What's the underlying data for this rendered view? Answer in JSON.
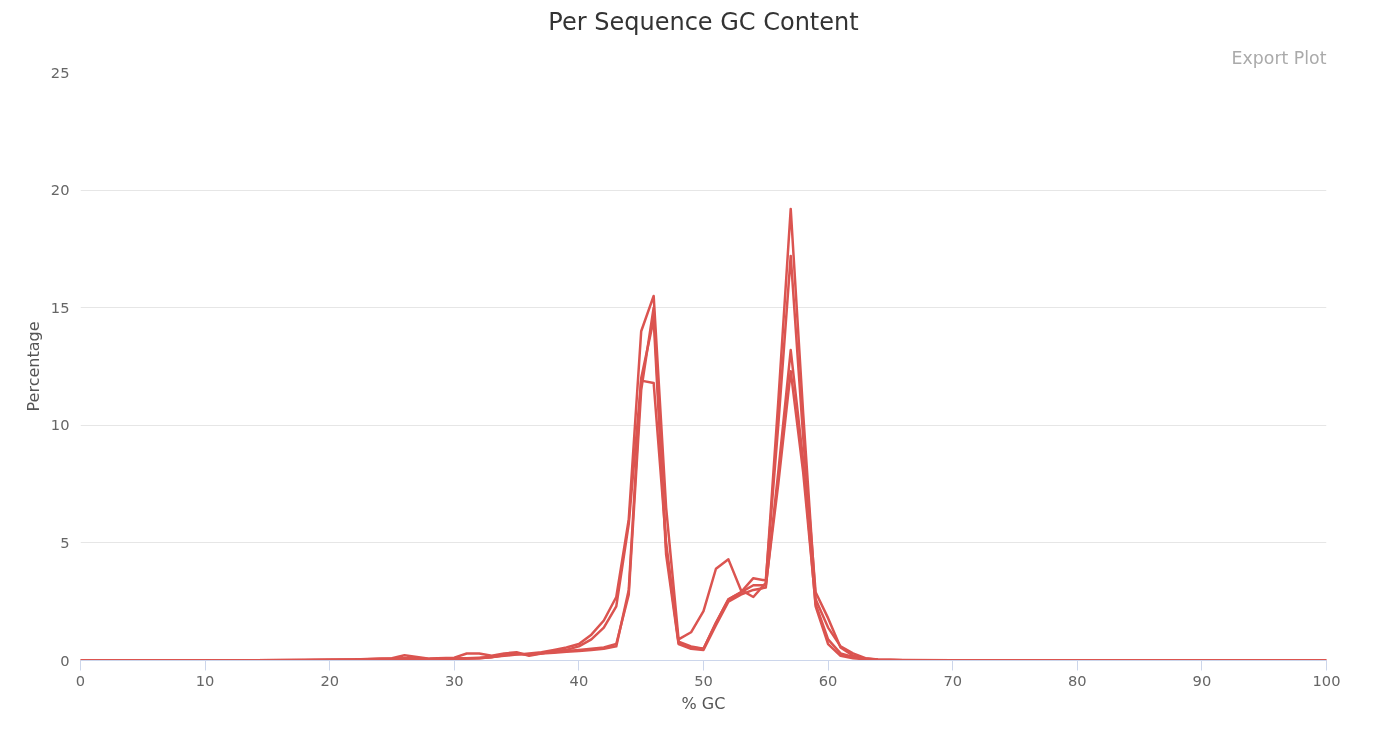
{
  "chart_data": {
    "type": "line",
    "title": "Per Sequence GC Content",
    "xlabel": "% GC",
    "ylabel": "Percentage",
    "annotations": [
      "Export Plot"
    ],
    "x": [
      0,
      10,
      14,
      18,
      20,
      22,
      24,
      25,
      26,
      27,
      28,
      30,
      31,
      32,
      33,
      34,
      35,
      36,
      37,
      38,
      39,
      40,
      41,
      42,
      43,
      44,
      45,
      46,
      47,
      48,
      49,
      50,
      51,
      52,
      53,
      54,
      55,
      56,
      57,
      58,
      59,
      60,
      61,
      62,
      63,
      64,
      66,
      70,
      80,
      90,
      100
    ],
    "series": [
      {
        "color": "#db5450",
        "values": [
          0,
          0,
          0.01,
          0.02,
          0.03,
          0.04,
          0.06,
          0.07,
          0.1,
          0.08,
          0.06,
          0.08,
          0.1,
          0.12,
          0.15,
          0.2,
          0.25,
          0.3,
          0.35,
          0.45,
          0.55,
          0.7,
          1.1,
          1.7,
          2.7,
          6,
          14,
          15.5,
          6.5,
          0.9,
          1.2,
          2.1,
          3.9,
          4.3,
          3,
          2.7,
          3.3,
          11,
          19.2,
          10.5,
          2.6,
          1.4,
          0.6,
          0.3,
          0.1,
          0.04,
          0.02,
          0.01,
          0,
          0,
          0
        ]
      },
      {
        "color": "#db5450",
        "values": [
          0,
          0,
          0.01,
          0.02,
          0.03,
          0.04,
          0.08,
          0.1,
          0.22,
          0.15,
          0.08,
          0.12,
          0.3,
          0.3,
          0.2,
          0.3,
          0.35,
          0.2,
          0.3,
          0.4,
          0.45,
          0.6,
          0.9,
          1.4,
          2.3,
          5.8,
          11.9,
          11.8,
          5,
          0.8,
          0.6,
          0.5,
          1.6,
          2.6,
          2.9,
          3.5,
          3.4,
          10,
          17.2,
          9.5,
          2.9,
          1.8,
          0.55,
          0.2,
          0.08,
          0.03,
          0.01,
          0,
          0,
          0,
          0
        ]
      },
      {
        "color": "#db5450",
        "values": [
          0,
          0,
          0.01,
          0.02,
          0.02,
          0.03,
          0.05,
          0.06,
          0.08,
          0.07,
          0.05,
          0.07,
          0.08,
          0.1,
          0.15,
          0.25,
          0.3,
          0.25,
          0.3,
          0.33,
          0.37,
          0.4,
          0.45,
          0.5,
          0.6,
          3,
          12,
          14.5,
          4.5,
          0.7,
          0.5,
          0.45,
          1.5,
          2.5,
          2.8,
          3,
          3.1,
          8,
          13.2,
          8.5,
          2.3,
          0.7,
          0.2,
          0.1,
          0.05,
          0.02,
          0.01,
          0,
          0,
          0,
          0
        ]
      },
      {
        "color": "#db5450",
        "values": [
          0,
          0,
          0.01,
          0.01,
          0.02,
          0.03,
          0.05,
          0.06,
          0.07,
          0.06,
          0.05,
          0.06,
          0.08,
          0.1,
          0.14,
          0.22,
          0.28,
          0.26,
          0.32,
          0.36,
          0.4,
          0.45,
          0.5,
          0.55,
          0.7,
          2.8,
          11.5,
          15,
          4.8,
          0.75,
          0.55,
          0.5,
          1.6,
          2.6,
          2.9,
          3.2,
          3.2,
          7.5,
          12.3,
          8,
          2.4,
          0.9,
          0.3,
          0.15,
          0.06,
          0.03,
          0.01,
          0,
          0,
          0,
          0
        ]
      }
    ],
    "xlim": [
      0,
      100
    ],
    "ylim": [
      0,
      25
    ],
    "xticks": [
      0,
      10,
      20,
      30,
      40,
      50,
      60,
      70,
      80,
      90,
      100
    ],
    "yticks": [
      0,
      5,
      10,
      15,
      20,
      25
    ],
    "grid": "y",
    "marker": "none",
    "line_style": "solid"
  }
}
